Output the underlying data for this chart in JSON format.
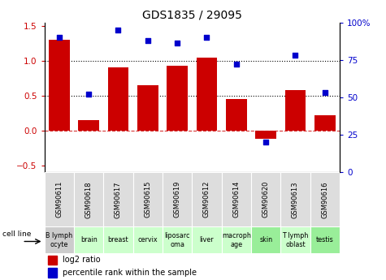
{
  "title": "GDS1835 / 29095",
  "gsm_labels": [
    "GSM90611",
    "GSM90618",
    "GSM90617",
    "GSM90615",
    "GSM90619",
    "GSM90612",
    "GSM90614",
    "GSM90620",
    "GSM90613",
    "GSM90616"
  ],
  "cell_labels": [
    "B lymph\nocyte",
    "brain",
    "breast",
    "cervix",
    "liposarc\noma",
    "liver",
    "macroph\nage",
    "skin",
    "T lymph\noblast",
    "testis"
  ],
  "cell_colors": [
    "#cccccc",
    "#ccffcc",
    "#ccffcc",
    "#ccffcc",
    "#ccffcc",
    "#ccffcc",
    "#ccffcc",
    "#99ee99",
    "#ccffcc",
    "#99ee99"
  ],
  "log2_ratio": [
    1.3,
    0.15,
    0.9,
    0.65,
    0.93,
    1.05,
    0.45,
    -0.12,
    0.58,
    0.22
  ],
  "pct_rank_pct": [
    90,
    52,
    95,
    88,
    86,
    90,
    72,
    20,
    78,
    53
  ],
  "bar_color": "#cc0000",
  "dot_color": "#0000cc",
  "ylim_left": [
    -0.6,
    1.55
  ],
  "ylim_right": [
    0,
    100
  ],
  "yticks_left": [
    -0.5,
    0.0,
    0.5,
    1.0,
    1.5
  ],
  "ytick_right_vals": [
    0,
    25,
    50,
    75,
    100
  ],
  "ytick_right_labels": [
    "0",
    "25",
    "50",
    "75",
    "100%"
  ],
  "hline_y": [
    0.5,
    1.0
  ],
  "legend_items": [
    "log2 ratio",
    "percentile rank within the sample"
  ],
  "cell_line_label": "cell line",
  "bar_width": 0.7,
  "gsm_box_color": "#dddddd",
  "white": "#ffffff",
  "bg_color": "#ffffff"
}
